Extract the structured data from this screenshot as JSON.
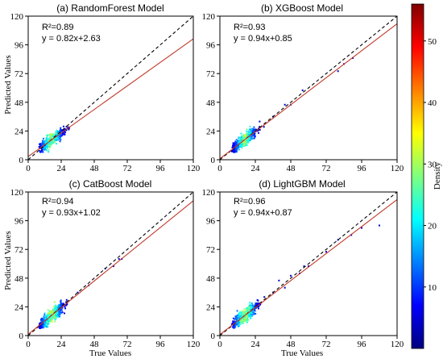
{
  "figure": {
    "shared_ylabel": "Predicted Values",
    "shared_xlabel": "True Values",
    "colorbar": {
      "label": "Density",
      "ticks": [
        10,
        20,
        30,
        40,
        50
      ],
      "range": [
        0,
        56
      ],
      "colormap": "jet"
    },
    "colors": {
      "identity_line": "#000000",
      "fit_line": "#c0392b",
      "axes": "#000000"
    }
  },
  "chart_data": [
    {
      "type": "scatter",
      "title": "(a) RandomForest Model",
      "r2_text": "R²=0.89",
      "eq_text": "y = 0.82x+2.63",
      "slope": 0.82,
      "intercept": 2.63,
      "xlim": [
        0,
        120
      ],
      "ylim": [
        0,
        120
      ],
      "xticks": [
        0,
        24,
        48,
        72,
        96,
        120
      ],
      "yticks": [
        0,
        24,
        48,
        72,
        96,
        120
      ],
      "cluster": {
        "center": [
          17,
          16
        ],
        "spread": [
          4.5,
          3.5
        ],
        "max_x": 30
      },
      "outliers": [
        [
          10,
          8
        ],
        [
          12,
          12
        ],
        [
          25,
          22
        ]
      ]
    },
    {
      "type": "scatter",
      "title": "(b) XGBoost Model",
      "r2_text": "R²=0.93",
      "eq_text": "y = 0.94x+0.85",
      "slope": 0.94,
      "intercept": 0.85,
      "xlim": [
        0,
        120
      ],
      "ylim": [
        0,
        120
      ],
      "xticks": [
        0,
        24,
        48,
        72,
        96,
        120
      ],
      "yticks": [
        0,
        24,
        48,
        72,
        96,
        120
      ],
      "cluster": {
        "center": [
          17,
          17
        ],
        "spread": [
          4,
          4
        ],
        "max_x": 30
      },
      "outliers": [
        [
          36,
          36
        ],
        [
          44,
          46
        ],
        [
          48,
          46
        ],
        [
          56,
          58
        ],
        [
          80,
          74
        ],
        [
          84,
          80
        ],
        [
          90,
          85
        ]
      ]
    },
    {
      "type": "scatter",
      "title": "(c) CatBoost Model",
      "r2_text": "R²=0.94",
      "eq_text": "y = 0.93x+1.02",
      "slope": 0.93,
      "intercept": 1.02,
      "xlim": [
        0,
        120
      ],
      "ylim": [
        0,
        120
      ],
      "xticks": [
        0,
        24,
        48,
        72,
        96,
        120
      ],
      "yticks": [
        0,
        24,
        48,
        72,
        96,
        120
      ],
      "cluster": {
        "center": [
          17,
          17
        ],
        "spread": [
          4.5,
          4
        ],
        "max_x": 33
      },
      "outliers": [
        [
          36,
          36
        ],
        [
          44,
          42
        ],
        [
          56,
          56
        ],
        [
          62,
          58
        ],
        [
          66,
          64
        ],
        [
          68,
          64
        ]
      ]
    },
    {
      "type": "scatter",
      "title": "(d) LightGBM Model",
      "r2_text": "R²=0.96",
      "eq_text": "y = 0.94x+0.87",
      "slope": 0.94,
      "intercept": 0.87,
      "xlim": [
        0,
        120
      ],
      "ylim": [
        0,
        120
      ],
      "xticks": [
        0,
        24,
        48,
        72,
        96,
        120
      ],
      "yticks": [
        0,
        24,
        48,
        72,
        96,
        120
      ],
      "cluster": {
        "center": [
          17,
          17
        ],
        "spread": [
          4.5,
          4
        ],
        "max_x": 33
      },
      "outliers": [
        [
          36,
          36
        ],
        [
          40,
          46
        ],
        [
          44,
          40
        ],
        [
          48,
          50
        ],
        [
          54,
          52
        ],
        [
          57,
          58
        ],
        [
          60,
          58
        ],
        [
          72,
          70
        ],
        [
          80,
          80
        ],
        [
          89,
          84
        ],
        [
          96,
          90
        ],
        [
          108,
          92
        ]
      ]
    }
  ]
}
